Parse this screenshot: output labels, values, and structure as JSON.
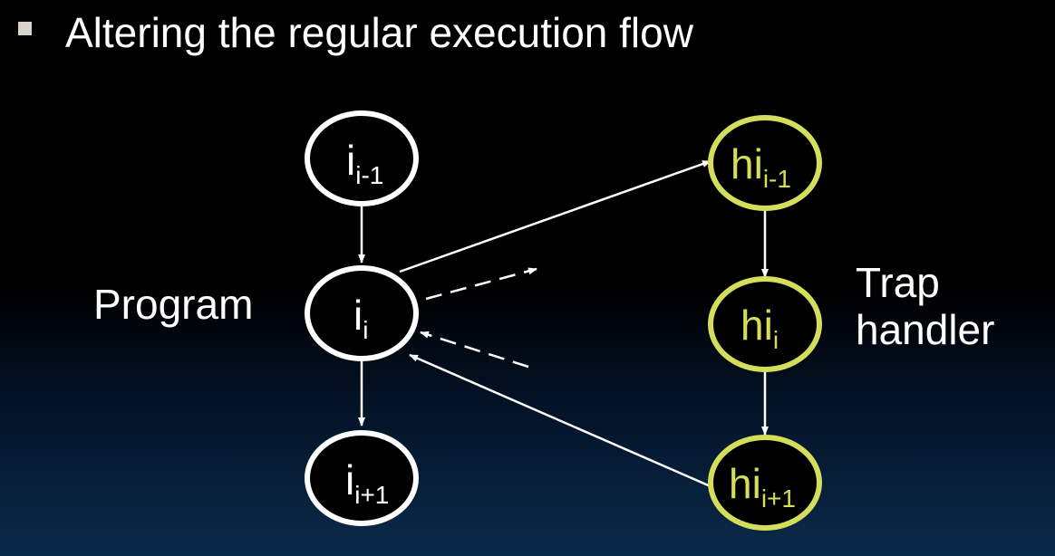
{
  "slide": {
    "title": "Altering the regular execution flow"
  },
  "labels": {
    "program": "Program",
    "trap_line1": "Trap",
    "trap_line2": "handler"
  },
  "program_nodes": [
    {
      "base": "i",
      "sub": "i-1"
    },
    {
      "base": "i",
      "sub": "i"
    },
    {
      "base": "i",
      "sub": "i+1"
    }
  ],
  "handler_nodes": [
    {
      "base": "hi",
      "sub": "i-1"
    },
    {
      "base": "hi",
      "sub": "i"
    },
    {
      "base": "hi",
      "sub": "i+1"
    }
  ],
  "colors": {
    "program_node": "#ffffff",
    "handler_node": "#d4de5a",
    "arrow": "#ffffff",
    "background_top": "#000000",
    "background_bottom": "#0a2a4a"
  }
}
